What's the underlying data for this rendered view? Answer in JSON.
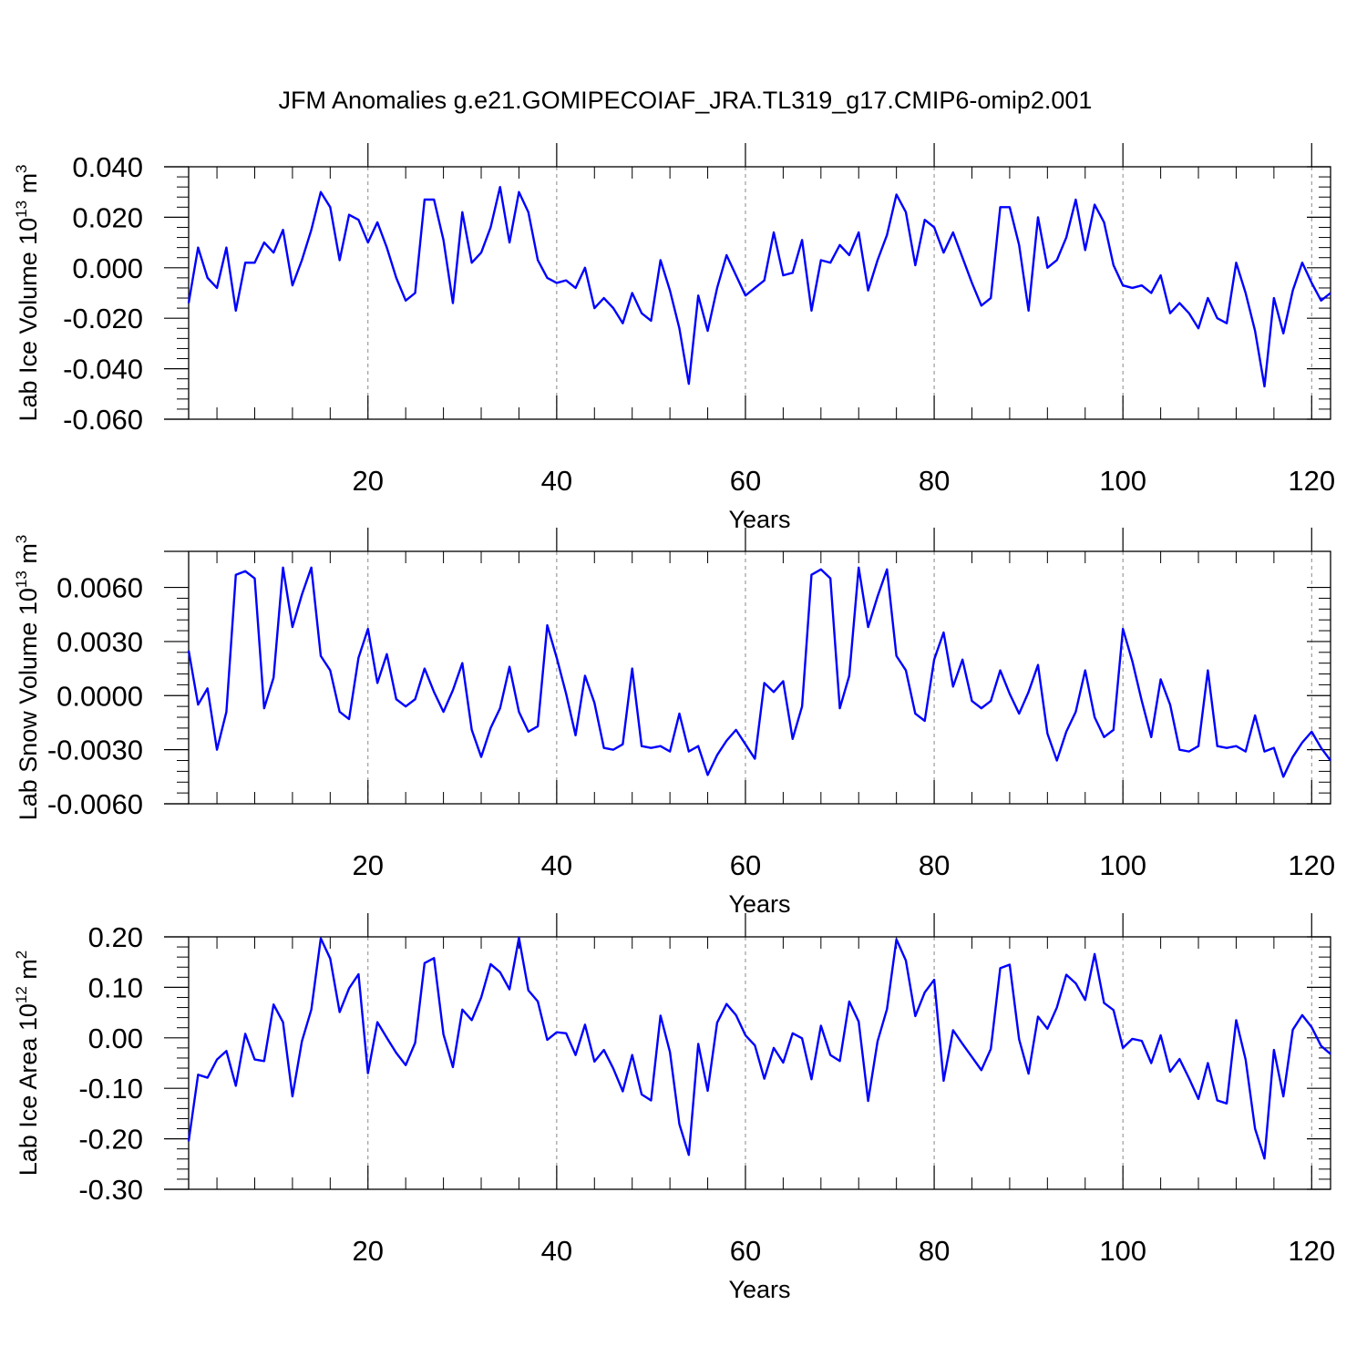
{
  "title": "JFM Anomalies g.e21.GOMIPECOIAF_JRA.TL319_g17.CMIP6-omip2.001",
  "line_color": "#0000ff",
  "chart_data": [
    {
      "type": "line",
      "id": "ice-volume",
      "ylabel": "Lab Ice Volume",
      "ylabel_unit_base": "10",
      "ylabel_unit_exp": "13",
      "ylabel_unit_dim": "m",
      "ylabel_unit_dim_exp": "3",
      "xlabel": "Years",
      "xlim": [
        1,
        122
      ],
      "ylim": [
        -0.06,
        0.04
      ],
      "xticks": [
        20,
        40,
        60,
        80,
        100,
        120
      ],
      "xtick_labels": [
        "20",
        "40",
        "60",
        "80",
        "100",
        "120"
      ],
      "yticks": [
        -0.06,
        -0.04,
        -0.02,
        0.0,
        0.02,
        0.04
      ],
      "ytick_labels": [
        "-0.060",
        "-0.040",
        "-0.020",
        "0.000",
        "0.020",
        "0.040"
      ],
      "grid": "vertical dashed at major x ticks",
      "x_start": 1,
      "values": [
        -0.014,
        0.008,
        -0.004,
        -0.008,
        0.008,
        -0.017,
        0.002,
        0.002,
        0.01,
        0.006,
        0.015,
        -0.007,
        0.003,
        0.015,
        0.03,
        0.024,
        0.003,
        0.021,
        0.019,
        0.01,
        0.018,
        0.008,
        -0.004,
        -0.013,
        -0.01,
        0.027,
        0.027,
        0.011,
        -0.014,
        0.022,
        0.002,
        0.006,
        0.016,
        0.032,
        0.01,
        0.03,
        0.022,
        0.003,
        -0.004,
        -0.006,
        -0.005,
        -0.008,
        0.0,
        -0.016,
        -0.012,
        -0.016,
        -0.022,
        -0.01,
        -0.018,
        -0.021,
        0.003,
        -0.009,
        -0.024,
        -0.046,
        -0.011,
        -0.025,
        -0.008,
        0.005,
        -0.003,
        -0.011,
        -0.008,
        -0.005,
        0.014,
        -0.003,
        -0.002,
        0.011,
        -0.017,
        0.003,
        0.002,
        0.009,
        0.005,
        0.014,
        -0.009,
        0.003,
        0.013,
        0.029,
        0.022,
        0.001,
        0.019,
        0.016,
        0.006,
        0.014,
        0.004,
        -0.006,
        -0.015,
        -0.012,
        0.024,
        0.024,
        0.009,
        -0.017,
        0.02,
        0.0,
        0.003,
        0.012,
        0.027,
        0.007,
        0.025,
        0.018,
        0.001,
        -0.007,
        -0.008,
        -0.007,
        -0.01,
        -0.003,
        -0.018,
        -0.014,
        -0.018,
        -0.024,
        -0.012,
        -0.02,
        -0.022,
        0.002,
        -0.01,
        -0.025,
        -0.047,
        -0.012,
        -0.026,
        -0.009,
        0.002,
        -0.006,
        -0.013,
        -0.01
      ]
    },
    {
      "type": "line",
      "id": "snow-volume",
      "ylabel": "Lab Snow Volume",
      "ylabel_unit_base": "10",
      "ylabel_unit_exp": "13",
      "ylabel_unit_dim": "m",
      "ylabel_unit_dim_exp": "3",
      "xlabel": "Years",
      "xlim": [
        1,
        122
      ],
      "ylim": [
        -0.006,
        0.008
      ],
      "xticks": [
        20,
        40,
        60,
        80,
        100,
        120
      ],
      "xtick_labels": [
        "20",
        "40",
        "60",
        "80",
        "100",
        "120"
      ],
      "yticks": [
        -0.006,
        -0.003,
        0.0,
        0.003,
        0.006
      ],
      "ytick_labels": [
        "-0.0060",
        "-0.0030",
        "0.0000",
        "0.0030",
        "0.0060"
      ],
      "grid": "vertical dashed at major x ticks",
      "x_start": 1,
      "values": [
        0.0025,
        -0.0005,
        0.0004,
        -0.003,
        -0.0009,
        0.0067,
        0.0069,
        0.0065,
        -0.0007,
        0.001,
        0.0071,
        0.0038,
        0.0056,
        0.0071,
        0.0022,
        0.0014,
        -0.0009,
        -0.0013,
        0.0021,
        0.0037,
        0.0007,
        0.0023,
        -0.0002,
        -0.0006,
        -0.0002,
        0.0015,
        0.0002,
        -0.0009,
        0.0003,
        0.0018,
        -0.0019,
        -0.0034,
        -0.0018,
        -0.0007,
        0.0016,
        -0.0009,
        -0.002,
        -0.0017,
        0.0039,
        0.0021,
        0.0001,
        -0.0022,
        0.0011,
        -0.0004,
        -0.0029,
        -0.003,
        -0.0027,
        0.0015,
        -0.0028,
        -0.0029,
        -0.0028,
        -0.0031,
        -0.001,
        -0.0031,
        -0.0028,
        -0.0044,
        -0.0033,
        -0.0025,
        -0.0019,
        -0.0027,
        -0.0035,
        0.0007,
        0.0002,
        0.0008,
        -0.0024,
        -0.0006,
        0.0067,
        0.007,
        0.0065,
        -0.0007,
        0.0011,
        0.0071,
        0.0038,
        0.0055,
        0.007,
        0.0022,
        0.0014,
        -0.001,
        -0.0014,
        0.002,
        0.0035,
        0.0005,
        0.002,
        -0.0003,
        -0.0007,
        -0.0003,
        0.0014,
        0.0001,
        -0.001,
        0.0002,
        0.0017,
        -0.0021,
        -0.0036,
        -0.002,
        -0.0009,
        0.0014,
        -0.0012,
        -0.0023,
        -0.0019,
        0.0037,
        0.0019,
        -0.0003,
        -0.0023,
        0.0009,
        -0.0005,
        -0.003,
        -0.0031,
        -0.0028,
        0.0014,
        -0.0028,
        -0.0029,
        -0.0028,
        -0.0031,
        -0.0011,
        -0.0031,
        -0.0029,
        -0.0045,
        -0.0034,
        -0.0026,
        -0.002,
        -0.0029,
        -0.0036
      ]
    },
    {
      "type": "line",
      "id": "ice-area",
      "ylabel": "Lab Ice Area",
      "ylabel_unit_base": "10",
      "ylabel_unit_exp": "12",
      "ylabel_unit_dim": "m",
      "ylabel_unit_dim_exp": "2",
      "xlabel": "Years",
      "xlim": [
        1,
        122
      ],
      "ylim": [
        -0.3,
        0.2
      ],
      "xticks": [
        20,
        40,
        60,
        80,
        100,
        120
      ],
      "xtick_labels": [
        "20",
        "40",
        "60",
        "80",
        "100",
        "120"
      ],
      "yticks": [
        -0.3,
        -0.2,
        -0.1,
        0.0,
        0.1,
        0.2
      ],
      "ytick_labels": [
        "-0.30",
        "-0.20",
        "-0.10",
        "0.00",
        "0.10",
        "0.20"
      ],
      "grid": "vertical dashed at major x ticks",
      "x_start": 1,
      "values": [
        -0.205,
        -0.073,
        -0.079,
        -0.043,
        -0.026,
        -0.095,
        0.008,
        -0.043,
        -0.046,
        0.066,
        0.031,
        -0.116,
        -0.007,
        0.056,
        0.197,
        0.157,
        0.051,
        0.098,
        0.126,
        -0.07,
        0.031,
        0.0,
        -0.03,
        -0.054,
        -0.01,
        0.148,
        0.158,
        0.007,
        -0.058,
        0.056,
        0.035,
        0.08,
        0.146,
        0.13,
        0.096,
        0.198,
        0.094,
        0.072,
        -0.004,
        0.011,
        0.009,
        -0.034,
        0.026,
        -0.047,
        -0.024,
        -0.061,
        -0.106,
        -0.034,
        -0.112,
        -0.124,
        0.044,
        -0.028,
        -0.171,
        -0.232,
        -0.012,
        -0.105,
        0.03,
        0.067,
        0.045,
        0.005,
        -0.015,
        -0.081,
        -0.02,
        -0.049,
        0.009,
        -0.001,
        -0.082,
        0.024,
        -0.034,
        -0.046,
        0.072,
        0.032,
        -0.125,
        -0.007,
        0.057,
        0.195,
        0.153,
        0.043,
        0.09,
        0.115,
        -0.085,
        0.015,
        -0.012,
        -0.038,
        -0.064,
        -0.022,
        0.138,
        0.145,
        -0.003,
        -0.071,
        0.042,
        0.018,
        0.06,
        0.125,
        0.108,
        0.075,
        0.166,
        0.069,
        0.055,
        -0.02,
        -0.002,
        -0.006,
        -0.05,
        0.005,
        -0.067,
        -0.042,
        -0.08,
        -0.121,
        -0.05,
        -0.124,
        -0.13,
        0.035,
        -0.043,
        -0.18,
        -0.239,
        -0.024,
        -0.116,
        0.016,
        0.045,
        0.021,
        -0.016,
        -0.032
      ]
    }
  ]
}
